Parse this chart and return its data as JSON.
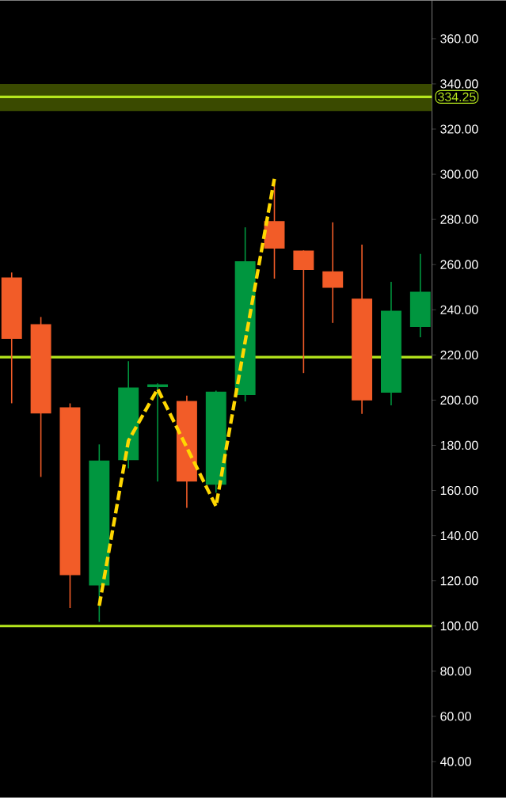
{
  "chart_data": {
    "type": "candlestick",
    "categories": [
      null,
      null,
      null,
      null,
      null,
      null,
      null,
      null,
      null,
      null,
      null,
      null,
      null,
      null,
      null
    ],
    "ohlc": [
      [
        254,
        256.5,
        198.6,
        227.4
      ],
      [
        233.3,
        236.8,
        166,
        194.4
      ],
      [
        196.5,
        198.6,
        108,
        122.8
      ],
      [
        118.2,
        180.4,
        101.8,
        173
      ],
      [
        173.7,
        217.2,
        169.8,
        205.3
      ],
      [
        206,
        207.4,
        164,
        206.7
      ],
      [
        199.3,
        202,
        152.3,
        164.2
      ],
      [
        162.8,
        204.2,
        159,
        203.5
      ],
      [
        202.5,
        276.5,
        199.4,
        261.2
      ],
      [
        279,
        296,
        253.8,
        267.4
      ],
      [
        265.9,
        266.3,
        212,
        257.9
      ],
      [
        256.7,
        278.7,
        234.2,
        250
      ],
      [
        244.6,
        268.8,
        193.9,
        200.2
      ],
      [
        203.6,
        252.4,
        197.7,
        239.3
      ],
      [
        232.7,
        264.7,
        227.8,
        247.7
      ]
    ],
    "colors": [
      "#f25c28",
      "#f25c28",
      "#f25c28",
      "#00963f",
      "#00963f",
      "#00963f",
      "#f25c28",
      "#00963f",
      "#00963f",
      "#f25c28",
      "#f25c28",
      "#f25c28",
      "#f25c28",
      "#00963f",
      "#00963f"
    ],
    "series": [
      {
        "type": "line",
        "values": [
          null,
          null,
          null,
          109,
          182,
          205,
          179,
          153,
          226,
          298,
          null,
          null,
          null,
          null,
          null
        ],
        "color": "#ffd700",
        "line_style": "dashed"
      }
    ],
    "ylim": [
      24,
      377
    ],
    "yticks": [
      {
        "value": 40,
        "label": "40.00"
      },
      {
        "value": 60,
        "label": "60.00"
      },
      {
        "value": 80,
        "label": "80.00"
      },
      {
        "value": 100,
        "label": "100.00"
      },
      {
        "value": 120,
        "label": "120.00"
      },
      {
        "value": 140,
        "label": "140.00"
      },
      {
        "value": 160,
        "label": "160.00"
      },
      {
        "value": 180,
        "label": "180.00"
      },
      {
        "value": 200,
        "label": "200.00"
      },
      {
        "value": 220,
        "label": "220.00"
      },
      {
        "value": 240,
        "label": "240.00"
      },
      {
        "value": 260,
        "label": "260.00"
      },
      {
        "value": 280,
        "label": "280.00"
      },
      {
        "value": 300,
        "label": "300.00"
      },
      {
        "value": 320,
        "label": "320.00"
      },
      {
        "value": 340,
        "label": "340.00"
      },
      {
        "value": 360,
        "label": "360.00"
      }
    ],
    "ref_lines": [
      {
        "axis": "y",
        "value": 219,
        "color": "#b5e61d"
      },
      {
        "axis": "y",
        "value": 100,
        "color": "#b5e61d"
      },
      {
        "axis": "y",
        "value": 334.25,
        "label": "334.25",
        "color": "#b5e61d"
      }
    ],
    "bands": [
      {
        "axis": "y",
        "from": 328,
        "to": 340,
        "color": "#3a4a00"
      }
    ],
    "tick_labels": "y",
    "grid": false
  }
}
